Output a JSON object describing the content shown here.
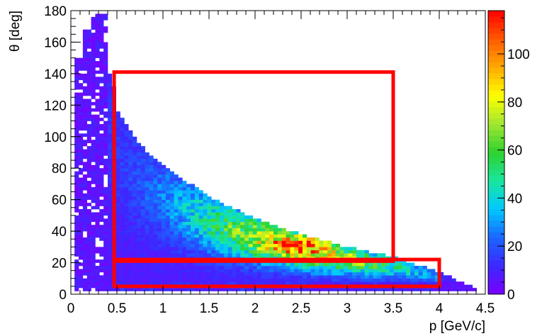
{
  "chart_data": {
    "type": "heatmap",
    "title": "",
    "xlabel": "p [GeV/c]",
    "ylabel": "θ [deg]",
    "xlim": [
      0,
      4.5
    ],
    "ylim": [
      0,
      180
    ],
    "x_ticks": [
      0,
      0.5,
      1,
      1.5,
      2,
      2.5,
      3,
      3.5,
      4,
      4.5
    ],
    "x_tick_labels": [
      "0",
      "0.5",
      "1",
      "1.5",
      "2",
      "2.5",
      "3",
      "3.5",
      "4",
      "4.5"
    ],
    "y_ticks": [
      0,
      20,
      40,
      60,
      80,
      100,
      120,
      140,
      160,
      180
    ],
    "y_tick_labels": [
      "0",
      "20",
      "40",
      "60",
      "80",
      "100",
      "120",
      "140",
      "160",
      "180"
    ],
    "colorbar": {
      "range": [
        0,
        118
      ],
      "ticks": [
        0,
        20,
        40,
        60,
        80,
        100
      ],
      "tick_labels": [
        "0",
        "20",
        "40",
        "60",
        "80",
        "100"
      ],
      "palette": [
        "#7a00ff",
        "#3c28ff",
        "#1a66ff",
        "#00c8ff",
        "#19e6a0",
        "#2dd22d",
        "#a0e632",
        "#ffff00",
        "#ffaa00",
        "#ff5a00",
        "#ff0000"
      ]
    },
    "distribution": {
      "description_points_upper_edge": [
        [
          0.45,
          140
        ],
        [
          0.5,
          118
        ],
        [
          0.75,
          95
        ],
        [
          1.0,
          82
        ],
        [
          1.5,
          62
        ],
        [
          2.0,
          48
        ],
        [
          2.5,
          38
        ],
        [
          3.0,
          30
        ],
        [
          3.5,
          24
        ],
        [
          4.0,
          14
        ],
        [
          4.4,
          4
        ]
      ],
      "low_momentum_band": {
        "p_range": [
          0.05,
          0.4
        ],
        "theta_range": [
          3,
          178
        ]
      },
      "peak_region": {
        "p": 2.5,
        "theta": 32,
        "counts": 118
      }
    },
    "selection_boxes": [
      {
        "p_min": 0.47,
        "p_max": 3.5,
        "theta_min": 21,
        "theta_max": 141,
        "color": "#ff0000"
      },
      {
        "p_min": 0.47,
        "p_max": 4.0,
        "theta_min": 5,
        "theta_max": 22,
        "color": "#ff0000"
      }
    ],
    "grid": false,
    "legend": "none"
  }
}
